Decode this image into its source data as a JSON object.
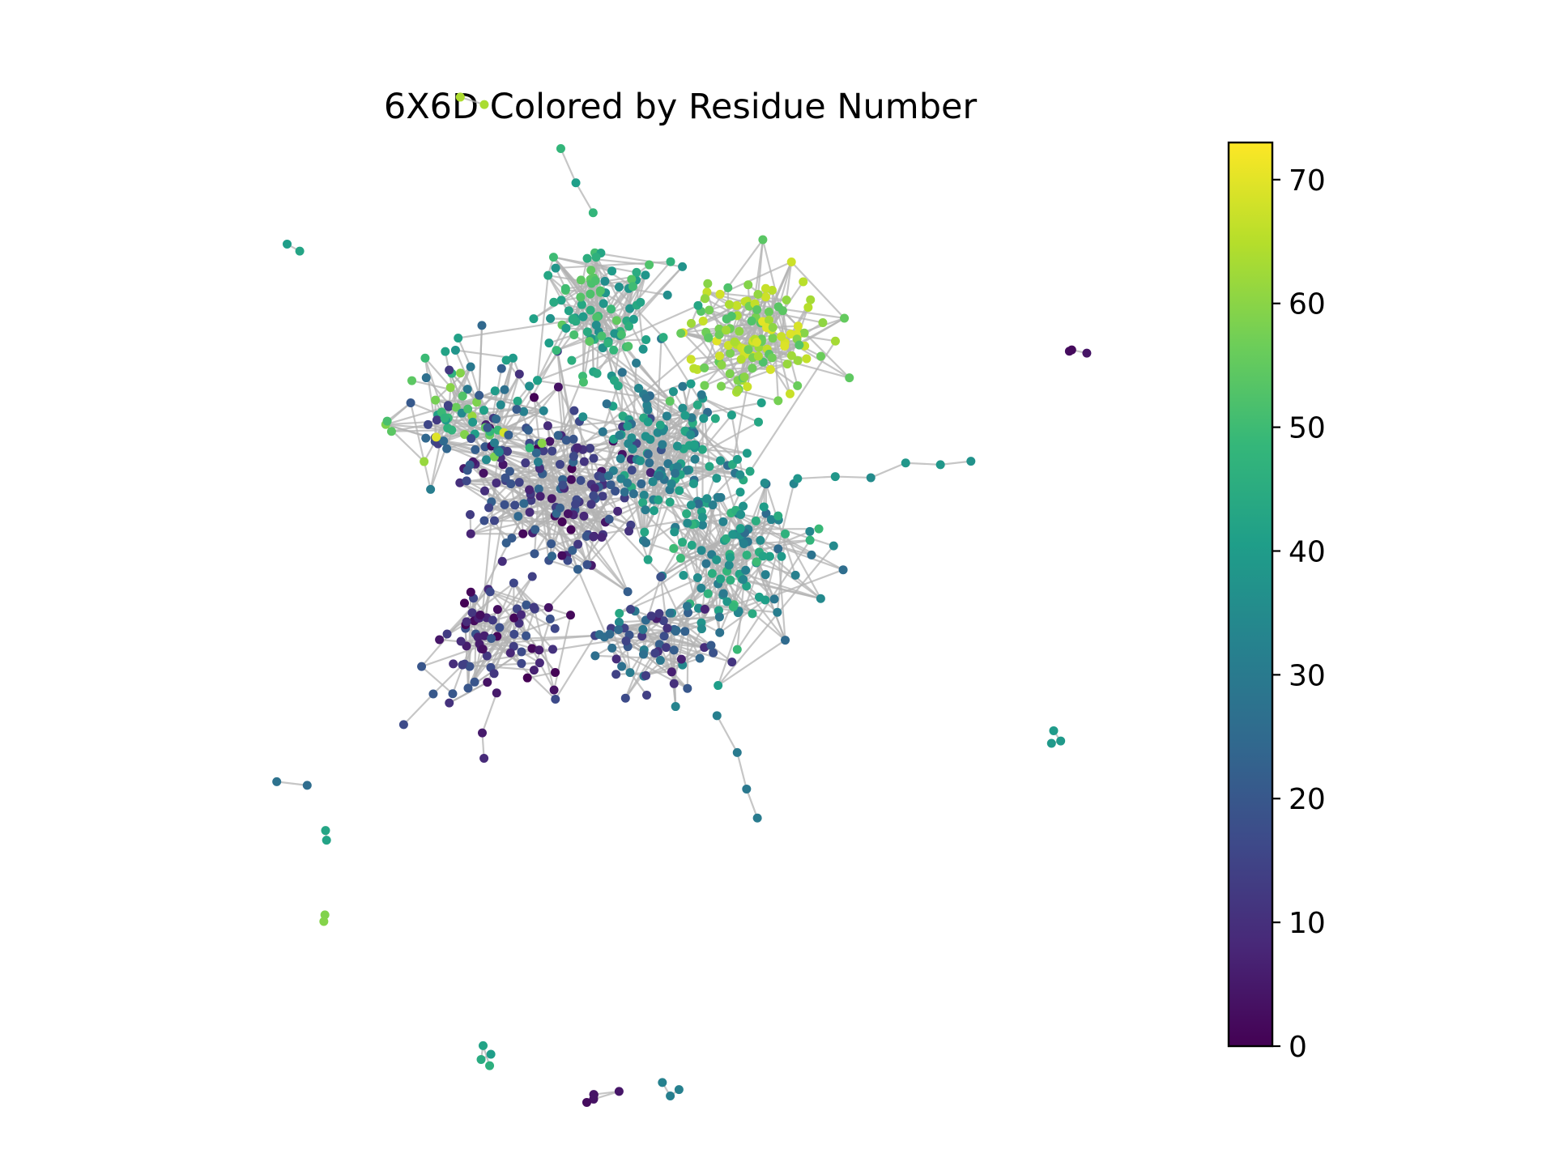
{
  "chart_data": {
    "type": "scatter",
    "title": "6X6D Colored by Residue Number",
    "colorbar": {
      "range": [
        0,
        73
      ],
      "ticks": [
        0,
        10,
        20,
        30,
        40,
        50,
        60,
        70
      ],
      "tick_labels": [
        "0",
        "10",
        "20",
        "30",
        "40",
        "50",
        "60",
        "70"
      ],
      "colormap": "viridis",
      "colormap_stops": [
        "#440154",
        "#482878",
        "#3e4989",
        "#31688e",
        "#26828e",
        "#1f9e89",
        "#35b779",
        "#6ece58",
        "#b5de2b",
        "#fde725"
      ]
    },
    "grid": false,
    "edge_color": "#b3b3b3",
    "seed": 6606,
    "clusters": [
      {
        "cx": 0.45,
        "cy": 0.46,
        "rx": 0.12,
        "ry": 0.1,
        "count": 150,
        "value_range": [
          0,
          25
        ]
      },
      {
        "cx": 0.6,
        "cy": 0.41,
        "rx": 0.1,
        "ry": 0.1,
        "count": 130,
        "value_range": [
          25,
          45
        ]
      },
      {
        "cx": 0.72,
        "cy": 0.25,
        "rx": 0.08,
        "ry": 0.07,
        "count": 120,
        "value_range": [
          52,
          70
        ]
      },
      {
        "cx": 0.52,
        "cy": 0.22,
        "rx": 0.09,
        "ry": 0.08,
        "count": 90,
        "value_range": [
          35,
          55
        ]
      },
      {
        "cx": 0.33,
        "cy": 0.35,
        "rx": 0.09,
        "ry": 0.08,
        "count": 80,
        "value_range": [
          10,
          70
        ]
      },
      {
        "cx": 0.7,
        "cy": 0.56,
        "rx": 0.1,
        "ry": 0.1,
        "count": 110,
        "value_range": [
          25,
          50
        ]
      },
      {
        "cx": 0.38,
        "cy": 0.66,
        "rx": 0.1,
        "ry": 0.08,
        "count": 70,
        "value_range": [
          0,
          20
        ]
      },
      {
        "cx": 0.58,
        "cy": 0.67,
        "rx": 0.09,
        "ry": 0.06,
        "count": 60,
        "value_range": [
          5,
          35
        ]
      }
    ],
    "arms": [
      {
        "points": [
          [
            0.78,
            0.45
          ],
          [
            0.83,
            0.44
          ],
          [
            0.88,
            0.44
          ],
          [
            0.93,
            0.43
          ],
          [
            0.98,
            0.43
          ],
          [
            1.02,
            0.42
          ]
        ],
        "value": 38
      },
      {
        "points": [
          [
            0.68,
            0.77
          ],
          [
            0.7,
            0.82
          ],
          [
            0.71,
            0.87
          ],
          [
            0.72,
            0.91
          ]
        ],
        "value": 30
      },
      {
        "points": [
          [
            0.5,
            0.08
          ],
          [
            0.48,
            0.04
          ],
          [
            0.46,
            0.0
          ]
        ],
        "value": 47
      },
      {
        "points": [
          [
            0.32,
            0.7
          ],
          [
            0.28,
            0.74
          ],
          [
            0.24,
            0.78
          ]
        ],
        "value": 15
      },
      {
        "points": [
          [
            0.36,
            0.74
          ],
          [
            0.35,
            0.8
          ],
          [
            0.35,
            0.83
          ]
        ],
        "value": 8
      }
    ],
    "isolated_groups": [
      {
        "x": 0.34,
        "y": -0.07,
        "count": 2,
        "value": 62
      },
      {
        "x": 0.88,
        "y": -0.31,
        "count": 4,
        "value": 66
      },
      {
        "x": 1.24,
        "y": -0.23,
        "count": 2,
        "value": 22
      },
      {
        "x": 0.09,
        "y": 0.13,
        "count": 2,
        "value": 43
      },
      {
        "x": 1.16,
        "y": 0.28,
        "count": 3,
        "value": 2
      },
      {
        "x": 0.07,
        "y": 0.87,
        "count": 2,
        "value": 28
      },
      {
        "x": 0.15,
        "y": 0.95,
        "count": 2,
        "value": 44
      },
      {
        "x": 0.13,
        "y": 1.04,
        "count": 2,
        "value": 60
      },
      {
        "x": 1.14,
        "y": 0.8,
        "count": 3,
        "value": 40
      },
      {
        "x": 0.36,
        "y": 1.24,
        "count": 4,
        "value": 44
      },
      {
        "x": 0.51,
        "y": 1.29,
        "count": 5,
        "value": 4
      },
      {
        "x": 0.6,
        "y": 1.28,
        "count": 3,
        "value": 32
      },
      {
        "x": 0.67,
        "y": 1.43,
        "count": 3,
        "value": 58
      }
    ]
  }
}
